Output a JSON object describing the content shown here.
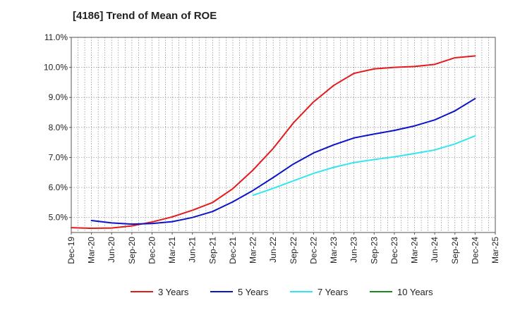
{
  "chart_data": {
    "type": "line",
    "title": "[4186]  Trend of Mean of ROE",
    "xlabel": "",
    "ylabel": "",
    "ylim": [
      4.5,
      11.0
    ],
    "yticks": [
      5.0,
      6.0,
      7.0,
      8.0,
      9.0,
      10.0,
      11.0
    ],
    "ytick_labels": [
      "5.0%",
      "6.0%",
      "7.0%",
      "8.0%",
      "9.0%",
      "10.0%",
      "11.0%"
    ],
    "x_labels": [
      "Dec-19",
      "Mar-20",
      "Jun-20",
      "Sep-20",
      "Dec-20",
      "Mar-21",
      "Jun-21",
      "Sep-21",
      "Dec-21",
      "Mar-22",
      "Jun-22",
      "Sep-22",
      "Dec-22",
      "Mar-23",
      "Jun-23",
      "Sep-23",
      "Dec-23",
      "Mar-24",
      "Jun-24",
      "Sep-24",
      "Dec-24",
      "Mar-25"
    ],
    "grid": true,
    "legend_position": "bottom",
    "series": [
      {
        "name": "3 Years",
        "color": "#e41a1c",
        "values": [
          4.66,
          4.64,
          4.65,
          4.72,
          4.85,
          5.02,
          5.24,
          5.5,
          5.96,
          6.58,
          7.3,
          8.15,
          8.85,
          9.4,
          9.8,
          9.95,
          10.0,
          10.03,
          10.1,
          10.32,
          10.38,
          null
        ]
      },
      {
        "name": "5 Years",
        "color": "#0a14c8",
        "values": [
          null,
          4.9,
          4.82,
          4.78,
          4.8,
          4.86,
          5.0,
          5.2,
          5.52,
          5.9,
          6.33,
          6.78,
          7.15,
          7.42,
          7.65,
          7.78,
          7.9,
          8.05,
          8.25,
          8.55,
          8.96,
          null
        ]
      },
      {
        "name": "7 Years",
        "color": "#33e5f0",
        "values": [
          null,
          null,
          null,
          null,
          null,
          null,
          null,
          null,
          null,
          5.74,
          5.97,
          6.22,
          6.47,
          6.67,
          6.83,
          6.93,
          7.02,
          7.13,
          7.25,
          7.45,
          7.72,
          null
        ]
      },
      {
        "name": "10 Years",
        "color": "#1a8a1a",
        "values": [
          null,
          null,
          null,
          null,
          null,
          null,
          null,
          null,
          null,
          null,
          null,
          null,
          null,
          null,
          null,
          null,
          null,
          null,
          null,
          null,
          null,
          null
        ]
      }
    ]
  }
}
